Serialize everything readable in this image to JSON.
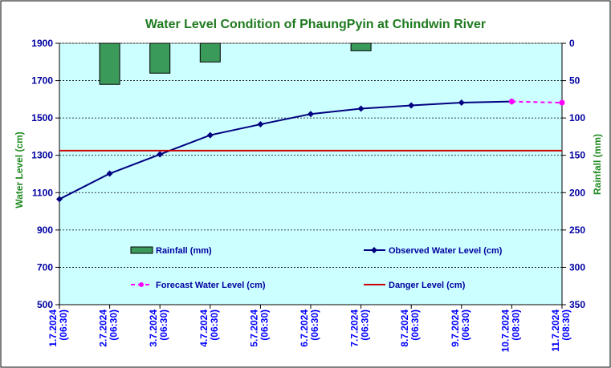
{
  "chart_data": {
    "type": "line",
    "title": "Water Level Condition of PhaungPyin at Chindwin River",
    "ylabel": "Water Level (cm)",
    "y2label": "Rainfall (mm)",
    "ylim": [
      500,
      1900
    ],
    "y2lim": [
      350,
      0
    ],
    "y2_inverted": true,
    "yticks": [
      "500",
      "700",
      "900",
      "1100",
      "1300",
      "1500",
      "1700",
      "1900"
    ],
    "y2ticks": [
      "0",
      "50",
      "100",
      "150",
      "200",
      "250",
      "300",
      "350"
    ],
    "categories": [
      [
        "1.7.2024",
        "(06:30)"
      ],
      [
        "2.7.2024",
        "(06:30)"
      ],
      [
        "3.7.2024",
        "(06:30)"
      ],
      [
        "4.7.2024",
        "(06:30)"
      ],
      [
        "5.7.2024",
        "(06:30)"
      ],
      [
        "6.7.2024",
        "(06:30)"
      ],
      [
        "7.7.2024",
        "(06:30)"
      ],
      [
        "8.7.2024",
        "(06:30)"
      ],
      [
        "9.7.2024",
        "(06:30)"
      ],
      [
        "10.7.2024",
        "(08:30)"
      ],
      [
        "11.7.2024",
        "(08:30)"
      ]
    ],
    "grid": true,
    "background_color": "#ccffff",
    "series": [
      {
        "name": "Rainfall (mm)",
        "type": "bar",
        "axis": "right",
        "color": "#3a9a5a",
        "values": [
          null,
          55,
          40,
          25,
          null,
          null,
          10,
          null,
          null,
          null,
          null
        ]
      },
      {
        "name": "Observed Water Level (cm)",
        "type": "line",
        "axis": "left",
        "color": "#000080",
        "values": [
          1065,
          1202,
          1305,
          1408,
          1466,
          1521,
          1550,
          1567,
          1582,
          1588,
          null
        ]
      },
      {
        "name": "Forecast Water Level (cm)",
        "type": "line",
        "axis": "left",
        "color": "#ff00ff",
        "dashed": true,
        "values": [
          null,
          null,
          null,
          null,
          null,
          null,
          null,
          null,
          null,
          1588,
          1582
        ]
      },
      {
        "name": "Danger Level (cm)",
        "type": "line",
        "axis": "left",
        "color": "#cc0000",
        "constant": 1325
      }
    ],
    "legend_placement": "inside-bottom"
  }
}
